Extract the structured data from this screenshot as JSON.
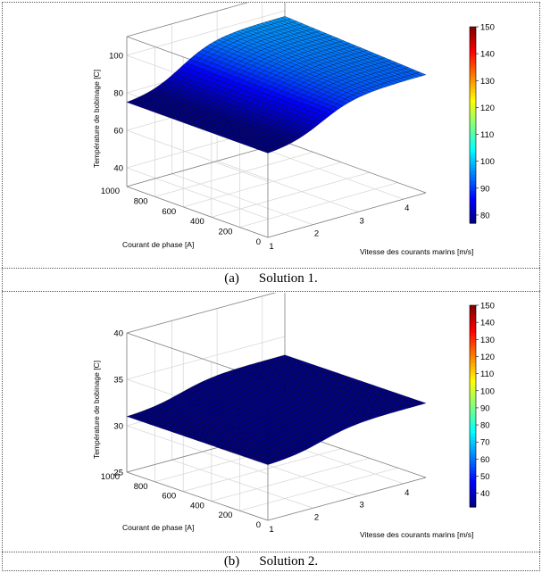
{
  "colors": {
    "surface_palette": "jet",
    "grid": "#d9d9d9",
    "axis": "#808080",
    "mesh_line": "#000000"
  },
  "panels": [
    {
      "caption_label": "(a)",
      "caption_text": "Solution 1.",
      "colorbar_ticks": [
        "80",
        "90",
        "100",
        "110",
        "120",
        "130",
        "140",
        "150"
      ]
    },
    {
      "caption_label": "(b)",
      "caption_text": "Solution 2.",
      "colorbar_ticks": [
        "40",
        "50",
        "60",
        "70",
        "80",
        "90",
        "100",
        "110",
        "120",
        "130",
        "140",
        "150"
      ]
    }
  ],
  "chart_data": [
    {
      "type": "surface",
      "xlabel": "Vitesse des courants marins [m/s]",
      "ylabel": "Courant de phase [A]",
      "zlabel": "Température de bobinage [C]",
      "xlim": [
        1,
        4.5
      ],
      "ylim": [
        0,
        1000
      ],
      "zlim": [
        30,
        110
      ],
      "x_ticks": [
        1,
        2,
        3,
        4
      ],
      "y_ticks": [
        0,
        200,
        400,
        600,
        800,
        1000
      ],
      "z_ticks": [
        40,
        60,
        80,
        100
      ],
      "colorbar_range": [
        77,
        150
      ],
      "colorbar_ticks": [
        80,
        90,
        100,
        110,
        120,
        130,
        140,
        150
      ],
      "surface_samples": [
        {
          "x": 1.0,
          "y": 1000,
          "z": 75
        },
        {
          "x": 1.0,
          "y": 0,
          "z": 75
        },
        {
          "x": 4.5,
          "y": 0,
          "z": 93
        },
        {
          "x": 4.5,
          "y": 1000,
          "z": 97
        }
      ],
      "grid": true
    },
    {
      "type": "surface",
      "xlabel": "Vitesse des courants marins [m/s]",
      "ylabel": "Courant de phase [A]",
      "zlabel": "Température de bobinage [C]",
      "xlim": [
        1,
        4.5
      ],
      "ylim": [
        0,
        1000
      ],
      "zlim": [
        25,
        40
      ],
      "x_ticks": [
        1,
        2,
        3,
        4
      ],
      "y_ticks": [
        0,
        200,
        400,
        600,
        800,
        1000
      ],
      "z_ticks": [
        25,
        30,
        35,
        40
      ],
      "colorbar_range": [
        32,
        150
      ],
      "colorbar_ticks": [
        40,
        50,
        60,
        70,
        80,
        90,
        100,
        110,
        120,
        130,
        140,
        150
      ],
      "surface_samples": [
        {
          "x": 1.0,
          "y": 1000,
          "z": 31
        },
        {
          "x": 1.0,
          "y": 0,
          "z": 31
        },
        {
          "x": 4.5,
          "y": 0,
          "z": 33
        },
        {
          "x": 4.5,
          "y": 1000,
          "z": 33
        }
      ],
      "grid": true
    }
  ]
}
